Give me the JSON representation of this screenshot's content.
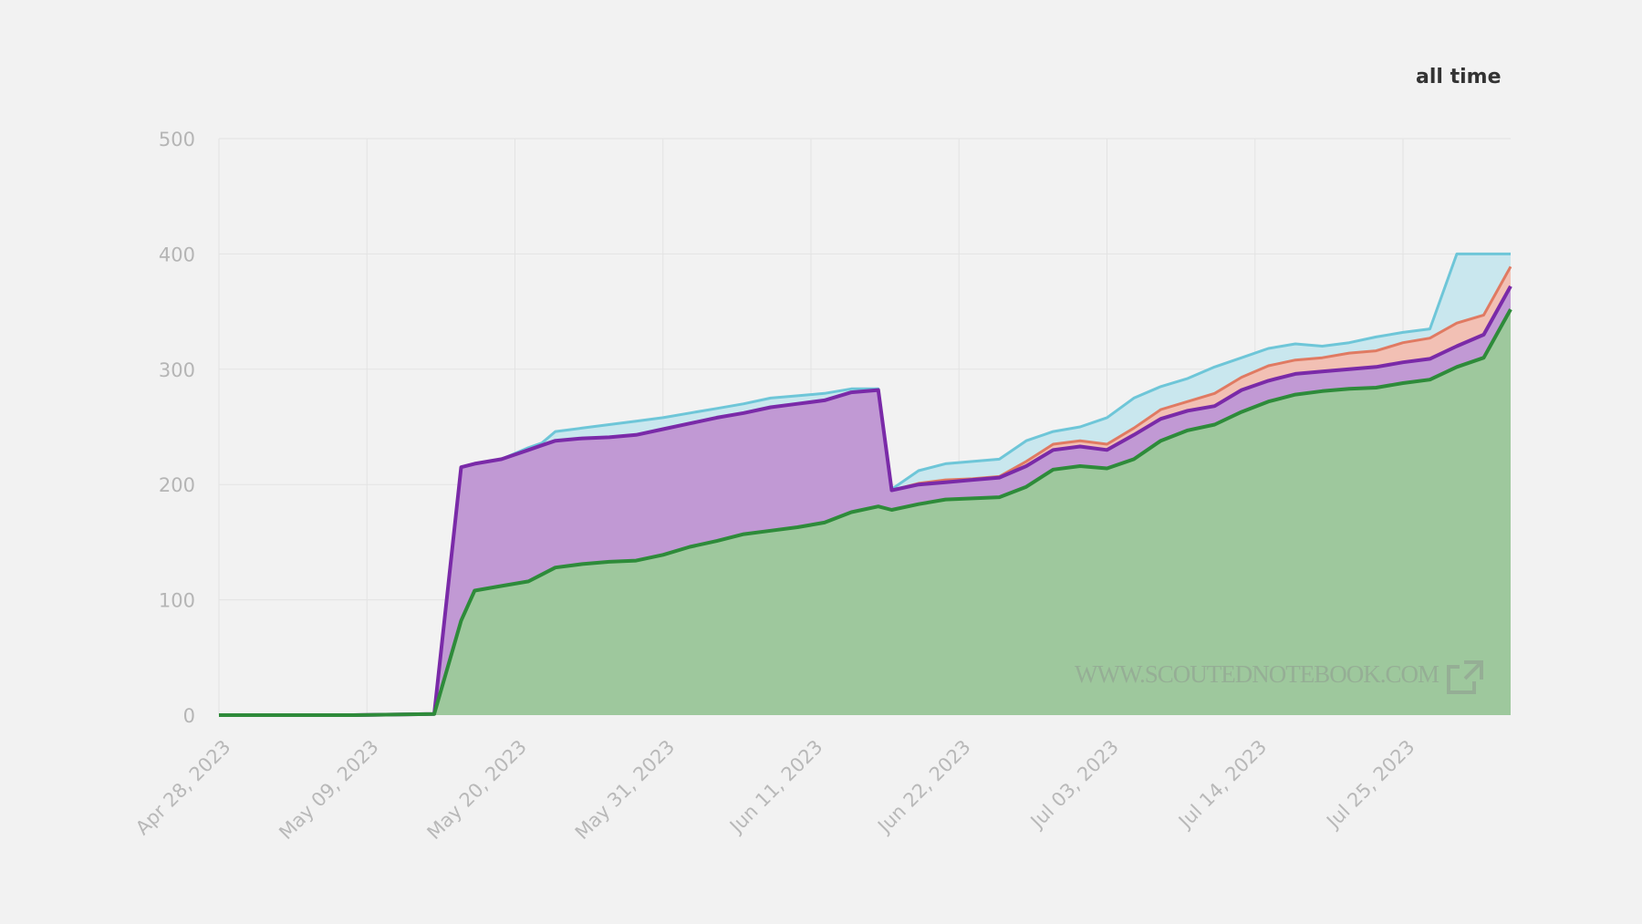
{
  "header": {
    "range_label": "all time"
  },
  "watermark": {
    "text": "WWW.SCOUTEDNOTEBOOK.COM",
    "icon": "external-link-icon"
  },
  "colors": {
    "background": "#f2f2f2",
    "green_line": "#2e8b3a",
    "green_fill": "#9ec89d",
    "purple_line": "#7a2aa8",
    "purple_fill": "#c199d4",
    "orange_line": "#e07a62",
    "orange_fill": "#f2c0b4",
    "cyan_line": "#6ec6d8",
    "cyan_fill": "#c9e7ee",
    "grid": "#e3e3e3",
    "tick_text": "#b5b5b5"
  },
  "chart_data": {
    "type": "area",
    "stacked": true,
    "title": "",
    "subtitle": "all time",
    "xlabel": "",
    "ylabel": "",
    "ylim": [
      0,
      500
    ],
    "yticks": [
      0,
      100,
      200,
      300,
      400,
      500
    ],
    "xticks": [
      "Apr 28, 2023",
      "May 09, 2023",
      "May 20, 2023",
      "May 31, 2023",
      "Jun 11, 2023",
      "Jun 22, 2023",
      "Jul 03, 2023",
      "Jul 14, 2023",
      "Jul 25, 2023"
    ],
    "x_start": "Apr 28, 2023",
    "x_end": "Aug 02, 2023",
    "grid": true,
    "legend": "none",
    "x_day_offsets": [
      0,
      10,
      16,
      18,
      19,
      21,
      23,
      24,
      25,
      27,
      29,
      31,
      33,
      35,
      37,
      39,
      41,
      43,
      45,
      47,
      49,
      50,
      52,
      54,
      56,
      58,
      60,
      62,
      64,
      66,
      68,
      70,
      72,
      74,
      76,
      78,
      80,
      82,
      84,
      86,
      88,
      90,
      92,
      94,
      96
    ],
    "stack_totals": {
      "green": [
        0,
        0,
        1,
        82,
        108,
        112,
        116,
        122,
        128,
        131,
        133,
        134,
        139,
        146,
        151,
        157,
        160,
        163,
        167,
        176,
        181,
        178,
        183,
        187,
        188,
        189,
        198,
        213,
        216,
        214,
        222,
        238,
        247,
        252,
        263,
        272,
        278,
        281,
        283,
        284,
        288,
        291,
        302,
        310,
        352
      ],
      "purple": [
        0,
        0,
        1,
        215,
        218,
        222,
        230,
        234,
        238,
        240,
        241,
        243,
        248,
        253,
        258,
        262,
        267,
        270,
        273,
        280,
        282,
        195,
        200,
        202,
        204,
        206,
        216,
        230,
        233,
        230,
        243,
        257,
        264,
        268,
        282,
        290,
        296,
        298,
        300,
        302,
        306,
        309,
        320,
        330,
        372
      ],
      "orange": [
        0,
        0,
        1,
        215,
        218,
        222,
        230,
        234,
        238,
        240,
        241,
        243,
        248,
        253,
        258,
        262,
        267,
        270,
        273,
        280,
        282,
        195,
        201,
        204,
        205,
        207,
        220,
        235,
        238,
        235,
        249,
        265,
        272,
        279,
        293,
        303,
        308,
        310,
        314,
        316,
        323,
        327,
        340,
        347,
        389
      ],
      "cyan": [
        0,
        0,
        1,
        215,
        218,
        222,
        232,
        236,
        246,
        249,
        252,
        255,
        258,
        262,
        266,
        270,
        275,
        277,
        279,
        283,
        283,
        196,
        212,
        218,
        220,
        222,
        238,
        246,
        250,
        258,
        275,
        285,
        292,
        302,
        310,
        318,
        322,
        320,
        323,
        328,
        332,
        335,
        400,
        400,
        400
      ]
    },
    "series": [
      {
        "name": "green",
        "color": "#2e8b3a"
      },
      {
        "name": "purple",
        "color": "#7a2aa8"
      },
      {
        "name": "orange",
        "color": "#e07a62"
      },
      {
        "name": "cyan",
        "color": "#6ec6d8"
      }
    ]
  }
}
